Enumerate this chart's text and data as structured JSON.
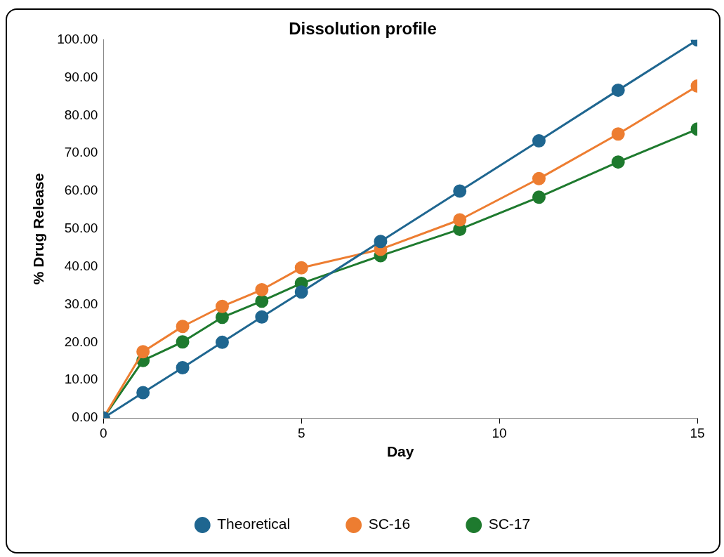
{
  "chart_data": {
    "type": "line",
    "title": "Dissolution profile",
    "xlabel": "Day",
    "ylabel": "% Drug Release",
    "x": [
      0,
      1,
      2,
      3,
      4,
      5,
      7,
      9,
      11,
      13,
      15
    ],
    "series": [
      {
        "name": "Theoretical",
        "color": "#1f6690",
        "values": [
          0,
          6.7,
          13.3,
          20,
          26.7,
          33.3,
          46.7,
          60,
          73.3,
          86.7,
          100
        ]
      },
      {
        "name": "SC-16",
        "color": "#ed7d31",
        "values": [
          0,
          17.5,
          24.2,
          29.5,
          33.9,
          39.7,
          44.6,
          52.4,
          63.3,
          75.1,
          87.8
        ]
      },
      {
        "name": "SC-17",
        "color": "#1e7a2e",
        "values": [
          0,
          15.2,
          20.1,
          26.6,
          30.9,
          35.6,
          42.9,
          49.9,
          58.4,
          67.7,
          76.4
        ]
      }
    ],
    "xlim": [
      0,
      15
    ],
    "xticks": [
      0,
      5,
      10,
      15
    ],
    "ylim": [
      0,
      100
    ],
    "yticks": [
      {
        "value": 0,
        "label": "0.00"
      },
      {
        "value": 10,
        "label": "10.00"
      },
      {
        "value": 20,
        "label": "20.00"
      },
      {
        "value": 30,
        "label": "30.00"
      },
      {
        "value": 40,
        "label": "40.00"
      },
      {
        "value": 50,
        "label": "50.00"
      },
      {
        "value": 60,
        "label": "60.00"
      },
      {
        "value": 70,
        "label": "70.00"
      },
      {
        "value": 80,
        "label": "80.00"
      },
      {
        "value": 90,
        "label": "90.00"
      },
      {
        "value": 100,
        "label": "100.00"
      }
    ],
    "grid": false,
    "legend": "bottom",
    "marker": "circle",
    "line_style": "solid"
  }
}
